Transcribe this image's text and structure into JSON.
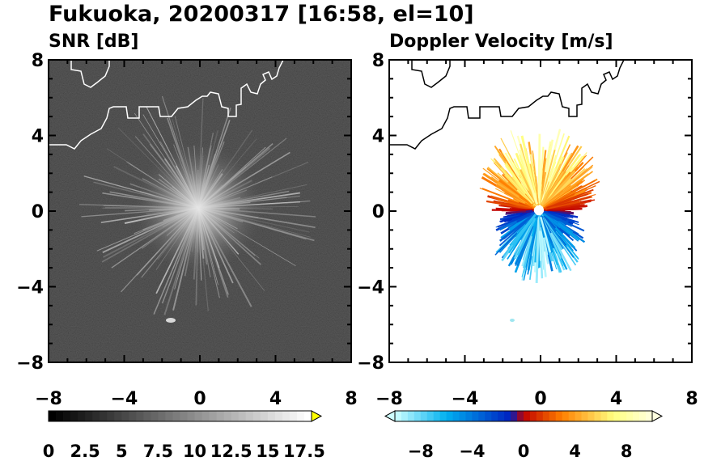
{
  "title": "Fukuoka, 20200317 [16:58, el=10]",
  "chart_data": [
    {
      "type": "heatmap",
      "panel_title": "SNR [dB]",
      "x_range": [
        -8,
        8
      ],
      "y_range": [
        -8,
        8
      ],
      "x_ticks": [
        "−8",
        "−4",
        "0",
        "4",
        "8"
      ],
      "y_ticks": [
        "8",
        "4",
        "0",
        "−4",
        "−8"
      ],
      "colorbar": {
        "range": [
          0,
          18
        ],
        "ticks": [
          "0",
          "2.5",
          "5",
          "7.5",
          "10",
          "12.5",
          "15",
          "17.5"
        ],
        "tick_values": [
          0,
          2.5,
          5,
          7.5,
          10,
          12.5,
          15,
          17.5
        ],
        "extend": "max",
        "colors": [
          "#000000",
          "#ffffff",
          "#ffff00"
        ]
      },
      "background_color": "#262626",
      "coastline_color": "#ffffff"
    },
    {
      "type": "heatmap",
      "panel_title": "Doppler Velocity [m/s]",
      "x_range": [
        -8,
        8
      ],
      "y_range": [
        -8,
        8
      ],
      "x_ticks": [
        "−8",
        "−4",
        "0",
        "4",
        "8"
      ],
      "y_ticks": [
        "8",
        "4",
        "0",
        "−4",
        "−8"
      ],
      "colorbar": {
        "range": [
          -10,
          10
        ],
        "ticks": [
          "−8",
          "−4",
          "0",
          "4",
          "8"
        ],
        "tick_values": [
          -8,
          -4,
          0,
          4,
          8
        ],
        "extend": "both",
        "colors": [
          "#cfffff",
          "#00b0f0",
          "#0020c0",
          "#c00000",
          "#ff8000",
          "#ffff80",
          "#ffffe0"
        ]
      },
      "background_color": "#ffffff",
      "coastline_color": "#000000"
    }
  ]
}
